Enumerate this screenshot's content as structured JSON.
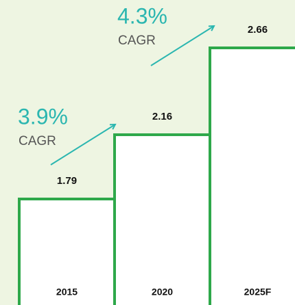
{
  "chart_data": {
    "type": "bar",
    "categories": [
      "2015",
      "2020",
      "2025F"
    ],
    "values": [
      1.79,
      2.16,
      2.66
    ],
    "color": "#2ea84a",
    "annotations": [
      {
        "text": "3.9%",
        "label": "CAGR"
      },
      {
        "text": "4.3%",
        "label": "CAGR"
      }
    ]
  }
}
